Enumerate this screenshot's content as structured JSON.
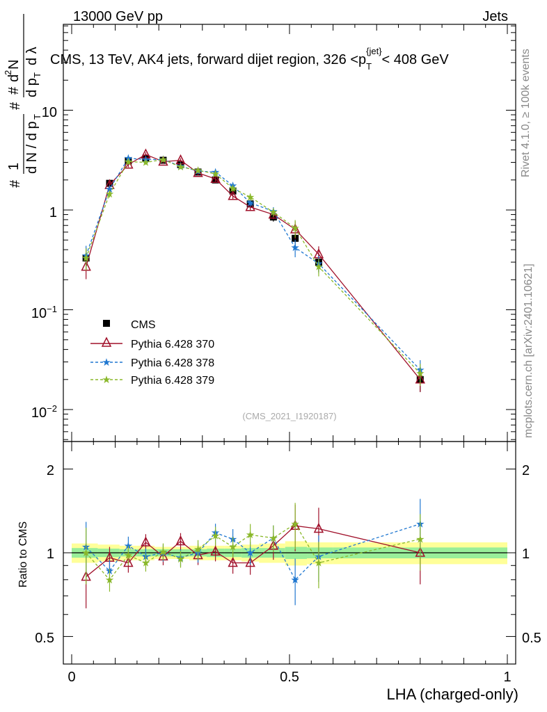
{
  "header": {
    "left": "13000 GeV pp",
    "right": "Jets"
  },
  "side": {
    "rivet": "Rivet 4.1.0, ≥ 100k events",
    "mcplots": "mcplots.cern.ch [arXiv:2401.10621]"
  },
  "watermark": "(CMS_2021_I1920187)",
  "colors": {
    "cms": "#000000",
    "p370": "#a0102a",
    "p378": "#1f77d0",
    "p379": "#8ab82a",
    "band_outer": "#ffff99",
    "band_inner": "#99ee99"
  },
  "chart_data": {
    "type": "scatter",
    "title": "CMS, 13 TeV, AK4 jets, forward dijet region, 326 <p_T^{jet}< 408 GeV",
    "xlabel": "LHA (charged-only)",
    "ylabel": "# 1/(dN/dp_T) # d²N/(dp_T dλ)",
    "xlim": [
      0,
      1
    ],
    "ylim": [
      0.005,
      60
    ],
    "yscale": "log",
    "x": [
      0.033,
      0.087,
      0.13,
      0.17,
      0.21,
      0.25,
      0.29,
      0.33,
      0.37,
      0.41,
      0.463,
      0.513,
      0.567,
      0.8
    ],
    "series": [
      {
        "name": "CMS",
        "marker": "square",
        "values": [
          0.33,
          1.85,
          3.1,
          3.3,
          3.15,
          2.85,
          2.4,
          2.0,
          1.55,
          1.15,
          0.85,
          0.52,
          0.3,
          0.02
        ]
      },
      {
        "name": "Pythia 6.428 370",
        "marker": "triangle",
        "values": [
          0.27,
          1.78,
          2.85,
          3.6,
          3.05,
          3.15,
          2.35,
          2.05,
          1.38,
          1.07,
          0.9,
          0.64,
          0.36,
          0.02
        ]
      },
      {
        "name": "Pythia 6.428 378",
        "marker": "star",
        "values": [
          0.35,
          1.62,
          3.3,
          3.2,
          3.2,
          2.75,
          2.45,
          2.4,
          1.75,
          1.18,
          0.97,
          0.42,
          0.29,
          0.025
        ]
      },
      {
        "name": "Pythia 6.428 379",
        "marker": "star",
        "values": [
          0.33,
          1.45,
          3.05,
          3.0,
          3.2,
          2.7,
          2.5,
          2.3,
          1.65,
          1.35,
          0.95,
          0.66,
          0.27,
          0.023
        ]
      }
    ],
    "ratio": {
      "ylabel": "Ratio to CMS",
      "ylim": [
        0.4,
        2.4
      ],
      "yticks": [
        "0.5",
        "1",
        "2"
      ],
      "series": [
        {
          "name": "Pythia 6.428 370",
          "values": [
            0.82,
            0.96,
            0.92,
            1.09,
            0.97,
            1.1,
            0.98,
            1.01,
            0.92,
            0.92,
            1.06,
            1.25,
            1.22,
            1.0
          ]
        },
        {
          "name": "Pythia 6.428 378",
          "values": [
            1.05,
            0.86,
            1.06,
            0.97,
            1.0,
            0.96,
            1.0,
            1.18,
            1.12,
            1.0,
            1.13,
            0.8,
            0.97,
            1.27
          ]
        },
        {
          "name": "Pythia 6.428 379",
          "values": [
            1.0,
            0.8,
            0.98,
            0.92,
            1.01,
            0.95,
            1.03,
            1.15,
            1.05,
            1.16,
            1.13,
            1.27,
            0.92,
            1.12
          ]
        }
      ]
    },
    "xticks": [
      "0",
      "0.5",
      "1"
    ],
    "yticks_main": [
      "10⁻²",
      "10⁻¹",
      "1",
      "10"
    ]
  },
  "legend": [
    "CMS",
    "Pythia 6.428 370",
    "Pythia 6.428 378",
    "Pythia 6.428 379"
  ]
}
